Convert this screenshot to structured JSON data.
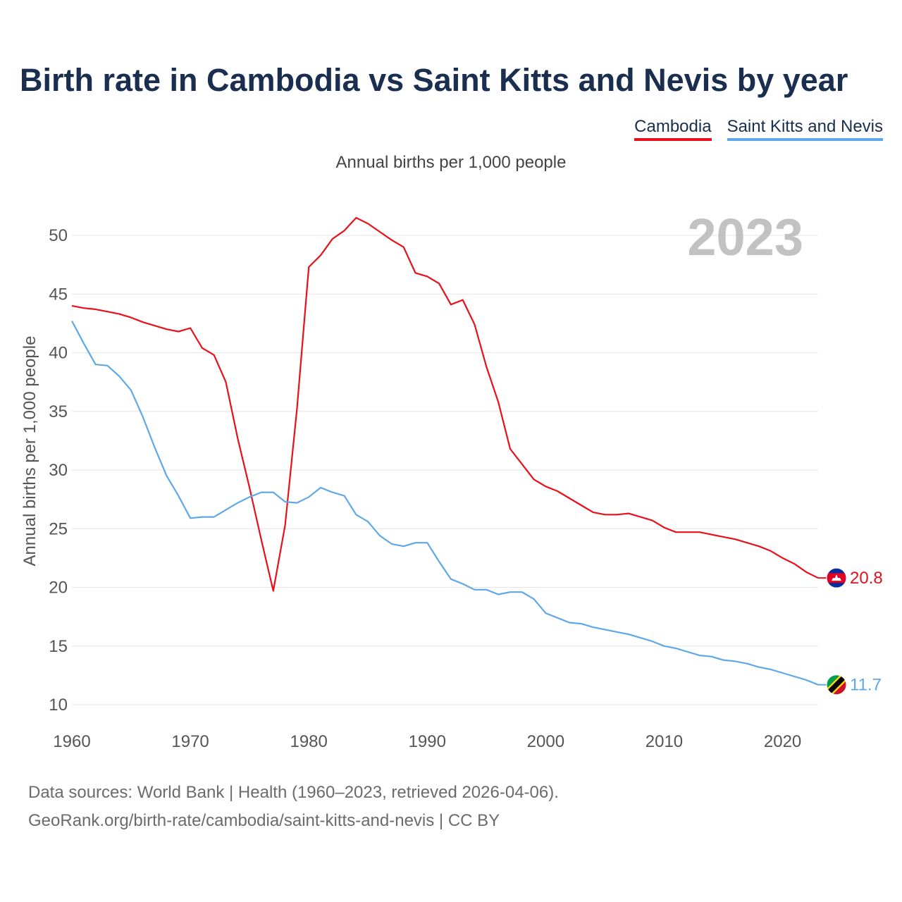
{
  "title": "Birth rate in Cambodia vs Saint Kitts and Nevis by year",
  "legend": [
    {
      "name": "Cambodia",
      "color": "#e8101a"
    },
    {
      "name": "Saint Kitts and Nevis",
      "color": "#5fa8e8"
    }
  ],
  "subtitle": "Annual births per 1,000 people",
  "year_label": "2023",
  "source": {
    "line1": "Data sources: World Bank | Health (1960–2023, retrieved 2026-04-06).",
    "line2": "GeoRank.org/birth-rate/cambodia/saint-kitts-and-nevis | CC BY"
  },
  "chart_data": {
    "type": "line",
    "title": "Birth rate in Cambodia vs Saint Kitts and Nevis by year",
    "xlabel": "",
    "ylabel": "Annual births per 1,000 people",
    "xlim": [
      1960,
      2023
    ],
    "ylim": [
      10,
      52
    ],
    "x_ticks": [
      1960,
      1970,
      1980,
      1990,
      2000,
      2010,
      2020
    ],
    "y_ticks": [
      10,
      15,
      20,
      25,
      30,
      35,
      40,
      45,
      50
    ],
    "grid": true,
    "legend_position": "top-right",
    "x": [
      1960,
      1961,
      1962,
      1963,
      1964,
      1965,
      1966,
      1967,
      1968,
      1969,
      1970,
      1971,
      1972,
      1973,
      1974,
      1975,
      1976,
      1977,
      1978,
      1979,
      1980,
      1981,
      1982,
      1983,
      1984,
      1985,
      1986,
      1987,
      1988,
      1989,
      1990,
      1991,
      1992,
      1993,
      1994,
      1995,
      1996,
      1997,
      1998,
      1999,
      2000,
      2001,
      2002,
      2003,
      2004,
      2005,
      2006,
      2007,
      2008,
      2009,
      2010,
      2011,
      2012,
      2013,
      2014,
      2015,
      2016,
      2017,
      2018,
      2019,
      2020,
      2021,
      2022,
      2023
    ],
    "series": [
      {
        "name": "Cambodia",
        "color": "#e8101a",
        "end_label": "20.8",
        "values": [
          44.0,
          43.8,
          43.7,
          43.5,
          43.3,
          43.0,
          42.6,
          42.3,
          42.0,
          41.8,
          42.1,
          40.4,
          39.8,
          37.5,
          32.7,
          28.5,
          24.0,
          19.7,
          25.3,
          35.2,
          47.3,
          48.3,
          49.7,
          50.4,
          51.5,
          51.0,
          50.3,
          49.6,
          49.0,
          46.8,
          46.5,
          45.9,
          44.1,
          44.5,
          42.4,
          38.8,
          35.8,
          31.8,
          30.5,
          29.2,
          28.6,
          28.2,
          27.6,
          27.0,
          26.4,
          26.2,
          26.2,
          26.3,
          26.0,
          25.7,
          25.1,
          24.7,
          24.7,
          24.7,
          24.5,
          24.3,
          24.1,
          23.8,
          23.5,
          23.1,
          22.5,
          22.0,
          21.3,
          20.8
        ]
      },
      {
        "name": "Saint Kitts and Nevis",
        "color": "#5fa8e8",
        "end_label": "11.7",
        "values": [
          42.7,
          40.8,
          39.0,
          38.9,
          38.0,
          36.8,
          34.5,
          31.9,
          29.5,
          27.8,
          25.9,
          26.0,
          26.0,
          26.6,
          27.2,
          27.7,
          28.1,
          28.1,
          27.3,
          27.2,
          27.7,
          28.5,
          28.1,
          27.8,
          26.2,
          25.6,
          24.4,
          23.7,
          23.5,
          23.8,
          23.8,
          22.2,
          20.7,
          20.3,
          19.8,
          19.8,
          19.4,
          19.6,
          19.6,
          19.0,
          17.8,
          17.4,
          17.0,
          16.9,
          16.6,
          16.4,
          16.2,
          16.0,
          15.7,
          15.4,
          15.0,
          14.8,
          14.5,
          14.2,
          14.1,
          13.8,
          13.7,
          13.5,
          13.2,
          13.0,
          12.7,
          12.4,
          12.1,
          11.7
        ]
      }
    ]
  }
}
